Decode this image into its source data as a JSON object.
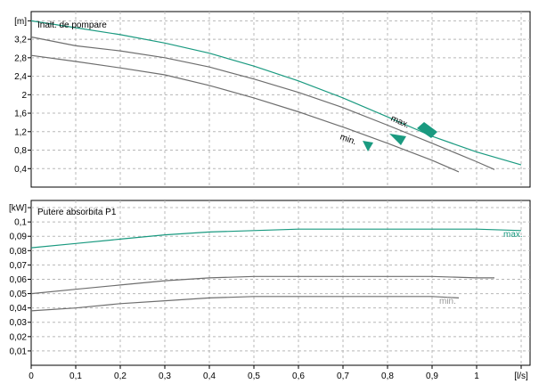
{
  "chart_data": [
    {
      "type": "line",
      "title": "Inalt. de pompare",
      "ylabel": "[m]",
      "xlabel": "[l/s]",
      "xlim": [
        0,
        1.12
      ],
      "ylim": [
        0,
        3.8
      ],
      "grid": true,
      "yticks": [
        "0,4",
        "0,8",
        "1,2",
        "1,6",
        "2",
        "2,4",
        "2,8",
        "3,2",
        "[m]"
      ],
      "ytick_values": [
        0.4,
        0.8,
        1.2,
        1.6,
        2.0,
        2.4,
        2.8,
        3.2,
        3.6
      ],
      "annotations": {
        "max_label": "max.",
        "min_label": "min."
      },
      "series": [
        {
          "name": "max.",
          "color": "#1a9a80",
          "x": [
            0,
            0.1,
            0.2,
            0.3,
            0.4,
            0.5,
            0.6,
            0.7,
            0.8,
            0.9,
            1.0,
            1.1
          ],
          "y": [
            3.6,
            3.45,
            3.3,
            3.12,
            2.9,
            2.62,
            2.3,
            1.93,
            1.52,
            1.1,
            0.76,
            0.48
          ]
        },
        {
          "name": "",
          "color": "#6e6e6e",
          "x": [
            0,
            0.1,
            0.2,
            0.3,
            0.4,
            0.5,
            0.6,
            0.7,
            0.8,
            0.9,
            1.0,
            1.04
          ],
          "y": [
            3.25,
            3.06,
            2.95,
            2.8,
            2.6,
            2.34,
            2.05,
            1.72,
            1.34,
            0.95,
            0.55,
            0.38
          ]
        },
        {
          "name": "",
          "color": "#6e6e6e",
          "x": [
            0,
            0.1,
            0.2,
            0.3,
            0.4,
            0.5,
            0.6,
            0.7,
            0.8,
            0.9,
            0.96
          ],
          "y": [
            2.85,
            2.72,
            2.58,
            2.43,
            2.2,
            1.93,
            1.63,
            1.3,
            0.95,
            0.58,
            0.33
          ]
        }
      ]
    },
    {
      "type": "line",
      "title": "Putere absorbita P1",
      "ylabel": "[kW]",
      "xlabel": "[l/s]",
      "xlim": [
        0,
        1.12
      ],
      "ylim": [
        0,
        0.115
      ],
      "grid": true,
      "yticks": [
        "0,01",
        "0,02",
        "0,03",
        "0,04",
        "0,05",
        "0,06",
        "0,07",
        "0,08",
        "0,09",
        "0,1",
        "[kW]"
      ],
      "ytick_values": [
        0.01,
        0.02,
        0.03,
        0.04,
        0.05,
        0.06,
        0.07,
        0.08,
        0.09,
        0.1,
        0.11
      ],
      "xticks": [
        "0",
        "0,1",
        "0,2",
        "0,3",
        "0,4",
        "0,5",
        "0,6",
        "0,7",
        "0,8",
        "0,9",
        "1",
        "[l/s]"
      ],
      "xtick_values": [
        0,
        0.1,
        0.2,
        0.3,
        0.4,
        0.5,
        0.6,
        0.7,
        0.8,
        0.9,
        1.0,
        1.1
      ],
      "annotations": {
        "max_label": "max.",
        "min_label": "min."
      },
      "series": [
        {
          "name": "max.",
          "color": "#1a9a80",
          "x": [
            0,
            0.1,
            0.2,
            0.3,
            0.4,
            0.5,
            0.6,
            0.7,
            0.8,
            0.9,
            1.0,
            1.1
          ],
          "y": [
            0.082,
            0.085,
            0.088,
            0.091,
            0.093,
            0.094,
            0.095,
            0.095,
            0.095,
            0.095,
            0.095,
            0.094
          ]
        },
        {
          "name": "",
          "color": "#6e6e6e",
          "x": [
            0,
            0.1,
            0.2,
            0.3,
            0.4,
            0.5,
            0.6,
            0.7,
            0.8,
            0.9,
            1.0,
            1.04
          ],
          "y": [
            0.05,
            0.053,
            0.056,
            0.059,
            0.061,
            0.062,
            0.062,
            0.062,
            0.062,
            0.062,
            0.061,
            0.061
          ]
        },
        {
          "name": "min.",
          "color": "#6e6e6e",
          "x": [
            0,
            0.1,
            0.2,
            0.3,
            0.4,
            0.5,
            0.6,
            0.7,
            0.8,
            0.9,
            0.96
          ],
          "y": [
            0.038,
            0.04,
            0.043,
            0.045,
            0.047,
            0.048,
            0.048,
            0.048,
            0.048,
            0.048,
            0.047
          ]
        }
      ]
    }
  ]
}
